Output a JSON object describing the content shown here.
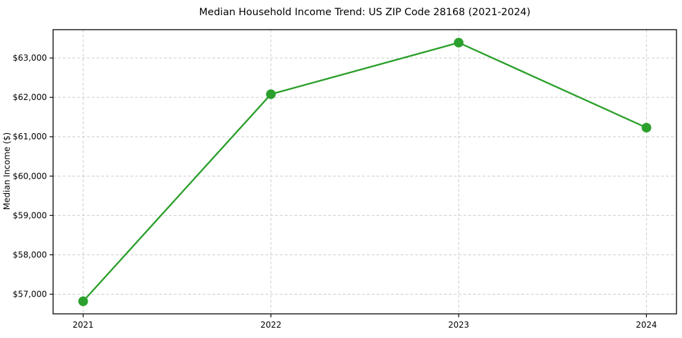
{
  "chart_data": {
    "type": "line",
    "title": "Median Household Income Trend: US ZIP Code 28168 (2021-2024)",
    "xlabel": "",
    "ylabel": "Median Income ($)",
    "x": [
      2021,
      2022,
      2023,
      2024
    ],
    "xtick_labels": [
      "2021",
      "2022",
      "2023",
      "2024"
    ],
    "series": [
      {
        "name": "Median Household Income",
        "values": [
          56820,
          62080,
          63390,
          61230
        ]
      }
    ],
    "yticks": [
      57000,
      58000,
      59000,
      60000,
      61000,
      62000,
      63000
    ],
    "ytick_labels": [
      "$57,000",
      "$58,000",
      "$59,000",
      "$60,000",
      "$61,000",
      "$62,000",
      "$63,000"
    ],
    "xlim": [
      2020.84,
      2024.16
    ],
    "ylim": [
      56500,
      63720
    ],
    "grid": true,
    "legend_position": "none",
    "colors": {
      "line": "#2ca02c",
      "marker": "#2ca02c",
      "grid": "#cccccc",
      "spine": "#000000",
      "background": "#ffffff",
      "text": "#000000"
    },
    "style": {
      "line_width": 2.4,
      "marker_radius": 7,
      "grid_dash": "4,3"
    }
  }
}
